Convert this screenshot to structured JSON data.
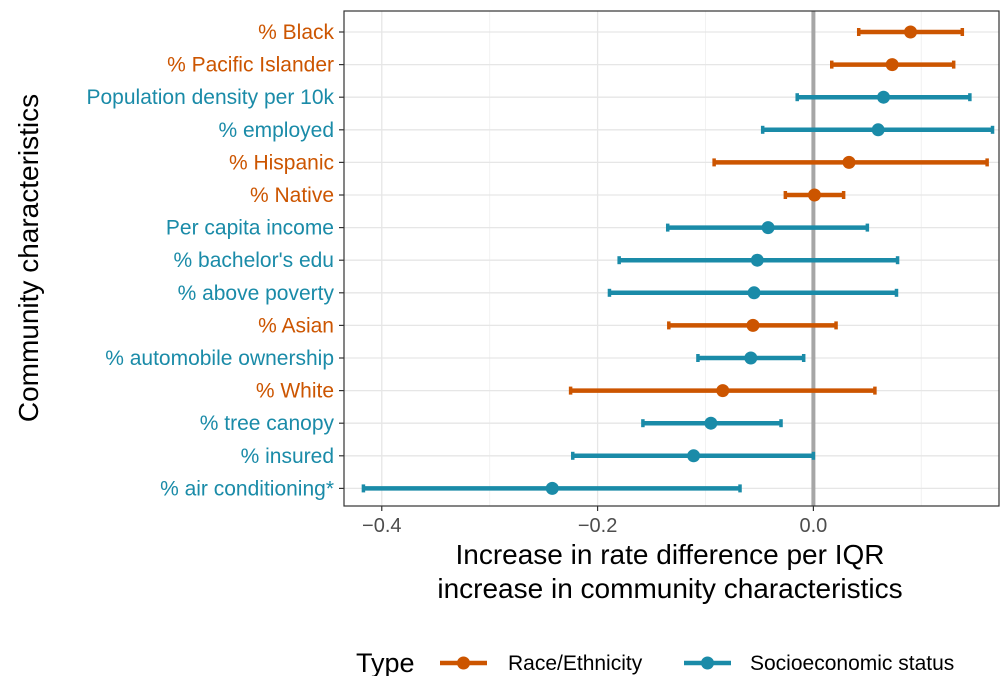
{
  "chart_data": {
    "type": "forest",
    "xlabel": [
      "Increase in rate difference per IQR",
      "increase in community characteristics"
    ],
    "ylabel": "Community characteristics",
    "xlim": [
      -0.435,
      0.172
    ],
    "xticks": [
      -0.4,
      -0.2,
      0.0
    ],
    "xtick_labels": [
      "−0.4",
      "−0.2",
      "0.0"
    ],
    "reference_line": 0.0,
    "grid": true,
    "legend": {
      "title": "Type",
      "placement": "bottom",
      "entries": [
        {
          "label": "Race/Ethnicity",
          "color": "#cc5500"
        },
        {
          "label": "Socioeconomic status",
          "color": "#1a8ba8"
        }
      ]
    },
    "rows": [
      {
        "label": "% Black",
        "type": "Race/Ethnicity",
        "estimate": 0.09,
        "lower": 0.042,
        "upper": 0.138
      },
      {
        "label": "% Pacific Islander",
        "type": "Race/Ethnicity",
        "estimate": 0.073,
        "lower": 0.017,
        "upper": 0.13
      },
      {
        "label": "Population density per 10k",
        "type": "Socioeconomic status",
        "estimate": 0.065,
        "lower": -0.015,
        "upper": 0.145
      },
      {
        "label": "% employed",
        "type": "Socioeconomic status",
        "estimate": 0.06,
        "lower": -0.047,
        "upper": 0.166
      },
      {
        "label": "% Hispanic",
        "type": "Race/Ethnicity",
        "estimate": 0.033,
        "lower": -0.092,
        "upper": 0.161
      },
      {
        "label": "% Native",
        "type": "Race/Ethnicity",
        "estimate": 0.001,
        "lower": -0.026,
        "upper": 0.028
      },
      {
        "label": "Per capita income",
        "type": "Socioeconomic status",
        "estimate": -0.042,
        "lower": -0.135,
        "upper": 0.05
      },
      {
        "label": "% bachelor's edu",
        "type": "Socioeconomic status",
        "estimate": -0.052,
        "lower": -0.18,
        "upper": 0.078
      },
      {
        "label": "% above poverty",
        "type": "Socioeconomic status",
        "estimate": -0.055,
        "lower": -0.189,
        "upper": 0.077
      },
      {
        "label": "% Asian",
        "type": "Race/Ethnicity",
        "estimate": -0.056,
        "lower": -0.134,
        "upper": 0.021
      },
      {
        "label": "% automobile ownership",
        "type": "Socioeconomic status",
        "estimate": -0.058,
        "lower": -0.107,
        "upper": -0.009
      },
      {
        "label": "% White",
        "type": "Race/Ethnicity",
        "estimate": -0.084,
        "lower": -0.225,
        "upper": 0.057
      },
      {
        "label": "% tree canopy",
        "type": "Socioeconomic status",
        "estimate": -0.095,
        "lower": -0.158,
        "upper": -0.03
      },
      {
        "label": "% insured",
        "type": "Socioeconomic status",
        "estimate": -0.111,
        "lower": -0.223,
        "upper": 0.0
      },
      {
        "label": "% air conditioning*",
        "type": "Socioeconomic status",
        "estimate": -0.242,
        "lower": -0.417,
        "upper": -0.068
      }
    ]
  }
}
